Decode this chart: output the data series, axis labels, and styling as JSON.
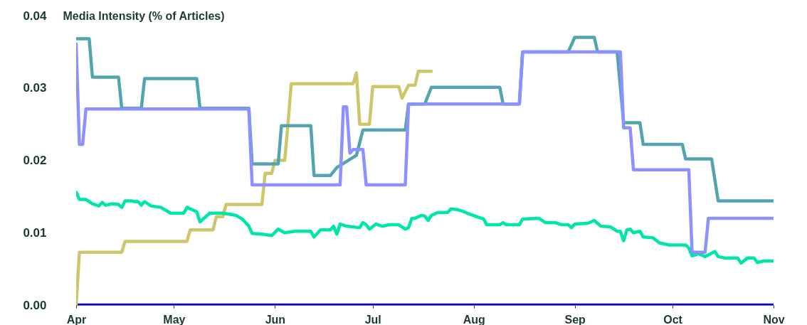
{
  "chart_data": {
    "type": "line",
    "ylabel": "Media Intensity (% of Articles)",
    "xlim": [
      "--04-01",
      "--11-01"
    ],
    "xticks": [
      {
        "value": "--04-01",
        "label": "Apr"
      },
      {
        "value": "--05-01",
        "label": "May"
      },
      {
        "value": "--06-01",
        "label": "Jun"
      },
      {
        "value": "--07-01",
        "label": "Jul"
      },
      {
        "value": "--08-01",
        "label": "Aug"
      },
      {
        "value": "--09-01",
        "label": "Sep"
      },
      {
        "value": "--10-01",
        "label": "Oct"
      },
      {
        "value": "--11-01",
        "label": "Nov"
      }
    ],
    "ylim": [
      0,
      0.04
    ],
    "yticks": [
      {
        "value": 0,
        "label": "0.00"
      },
      {
        "value": 0.01,
        "label": "0.01"
      },
      {
        "value": 0.02,
        "label": "0.02"
      },
      {
        "value": 0.03,
        "label": "0.03"
      },
      {
        "value": 0.04,
        "label": "0.04"
      }
    ],
    "series": [
      {
        "color": "#0000ee",
        "x": [
          "--04-01",
          "--11-01"
        ],
        "values": [
          0,
          0
        ]
      },
      {
        "color": "#cfc56a",
        "x": [
          "--04-01",
          "--04-02",
          "--04-15",
          "--04-16",
          "--05-05",
          "--05-06",
          "--05-13",
          "--05-14",
          "--05-16",
          "--05-17",
          "--05-28",
          "--05-29",
          "--05-31",
          "--06-01",
          "--06-04",
          "--06-05",
          "--06-06",
          "--06-25",
          "--06-26",
          "--06-27",
          "--06-30",
          "--07-01",
          "--07-09",
          "--07-10",
          "--07-12",
          "--07-14",
          "--07-15",
          "--07-19"
        ],
        "values": [
          0,
          0.0073,
          0.0073,
          0.0088,
          0.0088,
          0.0104,
          0.0104,
          0.0122,
          0.0122,
          0.0139,
          0.0139,
          0.0182,
          0.0182,
          0.02,
          0.02,
          0.025,
          0.0306,
          0.0306,
          0.0321,
          0.025,
          0.025,
          0.0302,
          0.0302,
          0.0286,
          0.0304,
          0.0304,
          0.0323,
          0.0323
        ]
      },
      {
        "color": "#00e5a8",
        "x": [
          "--04-01",
          "--04-02",
          "--04-04",
          "--04-06",
          "--04-08",
          "--04-09",
          "--04-10",
          "--04-12",
          "--04-14",
          "--04-15",
          "--04-16",
          "--04-18",
          "--04-19",
          "--04-20",
          "--04-21",
          "--04-22",
          "--04-24",
          "--04-27",
          "--04-30",
          "--05-04",
          "--05-05",
          "--05-06",
          "--05-08",
          "--05-09",
          "--05-12",
          "--05-16",
          "--05-20",
          "--05-22",
          "--05-24",
          "--05-25",
          "--05-28",
          "--05-31",
          "--06-02",
          "--06-04",
          "--06-07",
          "--06-12",
          "--06-13",
          "--06-15",
          "--06-18",
          "--06-19",
          "--06-20",
          "--06-21",
          "--06-23",
          "--06-27",
          "--06-28",
          "--06-29",
          "--06-30",
          "--07-02",
          "--07-04",
          "--07-06",
          "--07-09",
          "--07-11",
          "--07-12",
          "--07-13",
          "--07-14",
          "--07-16",
          "--07-17",
          "--07-18",
          "--07-19",
          "--07-21",
          "--07-24",
          "--07-25",
          "--07-27",
          "--07-29",
          "--07-30",
          "--08-02",
          "--08-04",
          "--08-05",
          "--08-09",
          "--08-10",
          "--08-11",
          "--08-15",
          "--08-16",
          "--08-21",
          "--08-23",
          "--08-26",
          "--08-28",
          "--08-30",
          "--08-31",
          "--09-01",
          "--09-05",
          "--09-07",
          "--09-09",
          "--09-12",
          "--09-14",
          "--09-15",
          "--09-16",
          "--09-17",
          "--09-18",
          "--09-19",
          "--09-21",
          "--09-22",
          "--09-25",
          "--09-27",
          "--09-28",
          "--09-30",
          "--10-05",
          "--10-06",
          "--10-07",
          "--10-09",
          "--10-11",
          "--10-14",
          "--10-15",
          "--10-17",
          "--10-21",
          "--10-22",
          "--10-24",
          "--10-26",
          "--10-27",
          "--10-29",
          "--11-01"
        ],
        "values": [
          0.0156,
          0.0146,
          0.0146,
          0.014,
          0.0137,
          0.0142,
          0.0138,
          0.014,
          0.0139,
          0.0135,
          0.0144,
          0.0144,
          0.0143,
          0.0143,
          0.0138,
          0.0143,
          0.0137,
          0.0135,
          0.0127,
          0.0127,
          0.0135,
          0.0133,
          0.0129,
          0.0115,
          0.0127,
          0.0127,
          0.0124,
          0.0119,
          0.0109,
          0.0099,
          0.0098,
          0.0096,
          0.0105,
          0.01,
          0.0102,
          0.0102,
          0.0094,
          0.0104,
          0.0104,
          0.0109,
          0.0098,
          0.0112,
          0.0109,
          0.0107,
          0.0114,
          0.0111,
          0.0105,
          0.0112,
          0.0109,
          0.0111,
          0.0111,
          0.0105,
          0.0107,
          0.012,
          0.012,
          0.0124,
          0.0123,
          0.0117,
          0.0124,
          0.0128,
          0.0128,
          0.0133,
          0.0132,
          0.0129,
          0.0127,
          0.0122,
          0.0119,
          0.0111,
          0.0111,
          0.0114,
          0.0111,
          0.0111,
          0.0119,
          0.012,
          0.0114,
          0.0114,
          0.0111,
          0.0111,
          0.0107,
          0.0112,
          0.0113,
          0.0117,
          0.0109,
          0.0108,
          0.0102,
          0.0102,
          0.0089,
          0.0104,
          0.0105,
          0.01,
          0.0102,
          0.0094,
          0.0093,
          0.0086,
          0.0085,
          0.0083,
          0.0083,
          0.0079,
          0.0068,
          0.0071,
          0.0067,
          0.0074,
          0.0067,
          0.0065,
          0.0065,
          0.0058,
          0.0065,
          0.0065,
          0.0059,
          0.0061,
          0.0061
        ]
      },
      {
        "color": "#52a5b0",
        "x": [
          "--04-01",
          "--04-05",
          "--04-06",
          "--04-14",
          "--04-15",
          "--04-21",
          "--04-22",
          "--05-08",
          "--05-09",
          "--05-24",
          "--05-25",
          "--06-02",
          "--06-03",
          "--06-12",
          "--06-13",
          "--06-18",
          "--06-20",
          "--06-26",
          "--06-28",
          "--07-11",
          "--07-12",
          "--07-17",
          "--07-19",
          "--08-09",
          "--08-10",
          "--08-15",
          "--08-16",
          "--08-30",
          "--09-01",
          "--09-07",
          "--09-08",
          "--09-14",
          "--09-16",
          "--09-21",
          "--09-22",
          "--10-04",
          "--10-05",
          "--10-13",
          "--10-15",
          "--11-01"
        ],
        "values": [
          0.0368,
          0.0368,
          0.0315,
          0.0315,
          0.0272,
          0.0272,
          0.0313,
          0.0313,
          0.0272,
          0.0272,
          0.0195,
          0.0195,
          0.0248,
          0.0248,
          0.0179,
          0.0179,
          0.019,
          0.0207,
          0.0242,
          0.0242,
          0.0278,
          0.0278,
          0.0301,
          0.0301,
          0.0278,
          0.0278,
          0.035,
          0.035,
          0.037,
          0.037,
          0.035,
          0.035,
          0.0252,
          0.0252,
          0.0222,
          0.0222,
          0.0202,
          0.0202,
          0.0144,
          0.0144
        ]
      },
      {
        "color": "#8c91ff",
        "x": [
          "--04-01",
          "--04-02",
          "--04-03",
          "--04-04",
          "--05-24",
          "--05-25",
          "--06-21",
          "--06-22",
          "--06-23",
          "--06-24",
          "--06-25",
          "--06-28",
          "--06-29",
          "--07-11",
          "--07-12",
          "--08-15",
          "--08-16",
          "--09-15",
          "--09-16",
          "--09-18",
          "--09-19",
          "--10-06",
          "--10-07",
          "--10-11",
          "--10-12",
          "--11-01"
        ],
        "values": [
          0.0361,
          0.0222,
          0.0222,
          0.0271,
          0.0271,
          0.0166,
          0.0166,
          0.0274,
          0.0274,
          0.021,
          0.0215,
          0.0215,
          0.0166,
          0.0166,
          0.0278,
          0.0278,
          0.035,
          0.035,
          0.0245,
          0.0245,
          0.0187,
          0.0187,
          0.0073,
          0.0073,
          0.012,
          0.012
        ]
      }
    ]
  }
}
